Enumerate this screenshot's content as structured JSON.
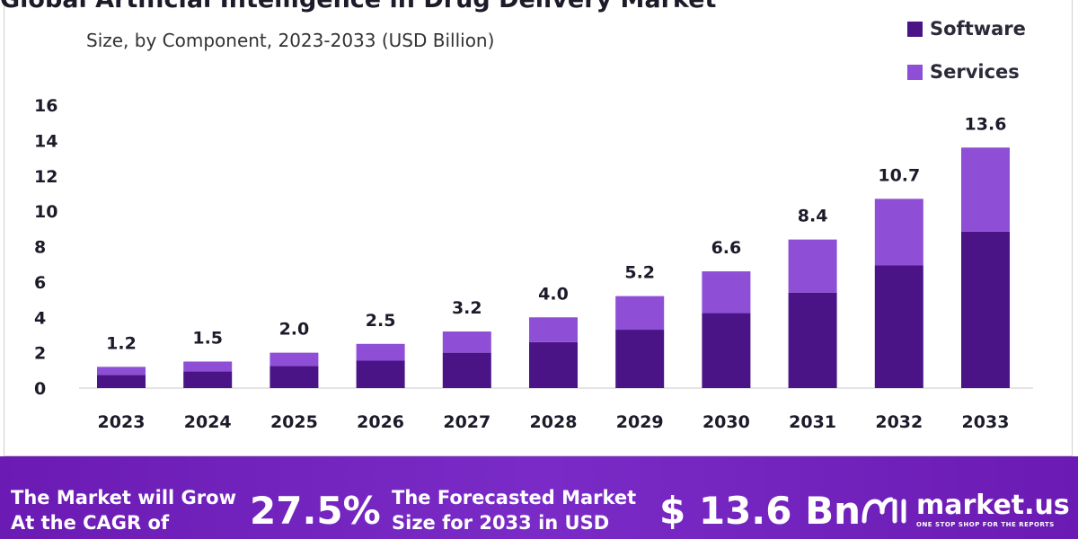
{
  "chart_data": {
    "type": "bar",
    "stacked": true,
    "title": "Global Artificial Intelligence in Drug Delivery Market",
    "subtitle": "Size, by Component, 2023-2033 (USD Billion)",
    "categories": [
      "2023",
      "2024",
      "2025",
      "2026",
      "2027",
      "2028",
      "2029",
      "2030",
      "2031",
      "2032",
      "2033"
    ],
    "series": [
      {
        "name": "Software",
        "color": "#4a1486",
        "values": [
          0.75,
          0.95,
          1.25,
          1.55,
          2.0,
          2.6,
          3.3,
          4.25,
          5.4,
          6.95,
          8.85
        ]
      },
      {
        "name": "Services",
        "color": "#8e4fd6",
        "values": [
          0.45,
          0.55,
          0.75,
          0.95,
          1.2,
          1.4,
          1.9,
          2.35,
          3.0,
          3.75,
          4.75
        ]
      }
    ],
    "totals": [
      "1.2",
      "1.5",
      "2.0",
      "2.5",
      "3.2",
      "4.0",
      "5.2",
      "6.6",
      "8.4",
      "10.7",
      "13.6"
    ],
    "ylim": [
      0,
      16
    ],
    "yticks": [
      0,
      2,
      4,
      6,
      8,
      10,
      12,
      14,
      16
    ],
    "grid": false,
    "legend_position": "top-right"
  },
  "banner": {
    "cagr_text_line1": "The Market will Grow",
    "cagr_text_line2": "At the CAGR of",
    "cagr_value": "27.5%",
    "forecast_text_line1": "The Forecasted Market",
    "forecast_text_line2": "Size for 2033 in USD",
    "forecast_value": "$ 13.6 Bn",
    "logo_name": "market.us",
    "logo_tagline": "ONE STOP SHOP FOR THE REPORTS",
    "logo_icon": "market-us-logo-icon"
  }
}
